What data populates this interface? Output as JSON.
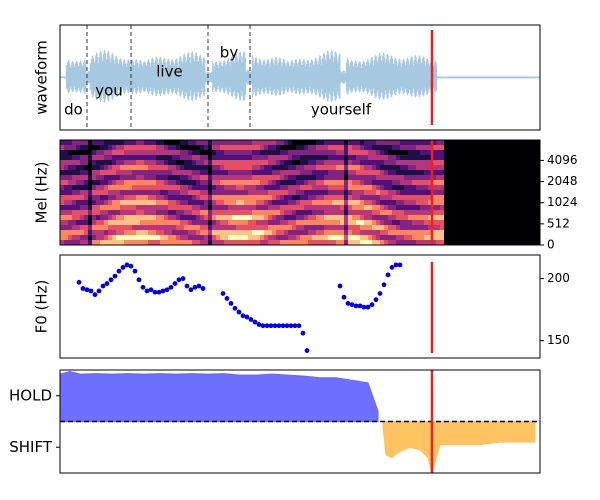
{
  "chart_data": [
    {
      "type": "waveform",
      "ylabel": "waveform",
      "xlim": [
        0,
        480
      ],
      "color": "#a6c8e0",
      "words": [
        "do",
        "you",
        "live",
        "by",
        "yourself"
      ],
      "word_bounds": [
        0,
        27,
        71,
        148,
        190,
        372
      ],
      "vline": 372,
      "vline_color": "#ee2020"
    },
    {
      "type": "spectrogram",
      "ylabel": "Mel (Hz)",
      "xlim": [
        0,
        480
      ],
      "ylim": [
        0,
        8000
      ],
      "yscale": "symlog",
      "linthresh": 512,
      "yticks": [
        0,
        512,
        1024,
        2048,
        4096
      ],
      "vline": 372,
      "vline_color": "#ee2020"
    },
    {
      "type": "scatter",
      "ylabel": "F0 (Hz)",
      "xlim": [
        0,
        480
      ],
      "ylim": [
        136,
        219
      ],
      "yticks": [
        150,
        200
      ],
      "color": "#0000ee",
      "x": [
        19,
        23,
        27,
        31,
        35,
        39,
        43,
        47,
        51,
        55,
        59,
        63,
        67,
        71,
        75,
        79,
        83,
        87,
        91,
        95,
        99,
        103,
        107,
        111,
        115,
        119,
        123,
        127,
        131,
        135,
        139,
        143,
        163,
        167,
        171,
        175,
        179,
        183,
        187,
        191,
        195,
        199,
        203,
        207,
        211,
        215,
        219,
        223,
        227,
        231,
        235,
        239,
        243,
        247,
        280,
        284,
        288,
        292,
        296,
        300,
        304,
        308,
        312,
        316,
        320,
        324,
        328,
        332,
        336,
        340
      ],
      "y": [
        197,
        192,
        191,
        190,
        187,
        190,
        194,
        196,
        199,
        202,
        206,
        209,
        211,
        210,
        206,
        199,
        193,
        190,
        191,
        189,
        189,
        190,
        191,
        193,
        196,
        199,
        200,
        194,
        191,
        193,
        194,
        192,
        188,
        184,
        180,
        176,
        173,
        170,
        169,
        167,
        165,
        163,
        162,
        162,
        162,
        162,
        162,
        162,
        162,
        162,
        162,
        162,
        156,
        142,
        194,
        185,
        180,
        179,
        178,
        178,
        177,
        177,
        179,
        183,
        188,
        195,
        203,
        209,
        211,
        211
      ],
      "vline": 372,
      "vline_color": "#ee2020"
    },
    {
      "type": "area",
      "xlim": [
        0,
        480
      ],
      "ylim": [
        -1,
        1
      ],
      "yticks": [
        {
          "value": 0.5,
          "label": "HOLD"
        },
        {
          "value": -0.5,
          "label": "SHIFT"
        }
      ],
      "hline": 0,
      "series": [
        {
          "color": "#6666ff",
          "x": [
            0,
            10,
            20,
            36,
            52,
            68,
            84,
            100,
            116,
            132,
            148,
            164,
            180,
            196,
            212,
            228,
            244,
            260,
            276,
            292,
            308,
            318
          ],
          "values": [
            0.92,
            0.97,
            0.92,
            0.93,
            0.92,
            0.93,
            0.92,
            0.93,
            0.92,
            0.93,
            0.92,
            0.93,
            0.9,
            0.9,
            0.92,
            0.9,
            0.88,
            0.85,
            0.85,
            0.8,
            0.75,
            0.2
          ]
        },
        {
          "color": "#ffc05a",
          "x": [
            323,
            326,
            332,
            338,
            350,
            360,
            368,
            372,
            380,
            400,
            420,
            440,
            460,
            475
          ],
          "values": [
            -0.1,
            -0.65,
            -0.7,
            -0.6,
            -0.5,
            -0.55,
            -0.7,
            -1.0,
            -0.45,
            -0.45,
            -0.45,
            -0.4,
            -0.4,
            -0.4
          ]
        }
      ],
      "vline": 372,
      "vline_color": "#ee2020"
    }
  ]
}
